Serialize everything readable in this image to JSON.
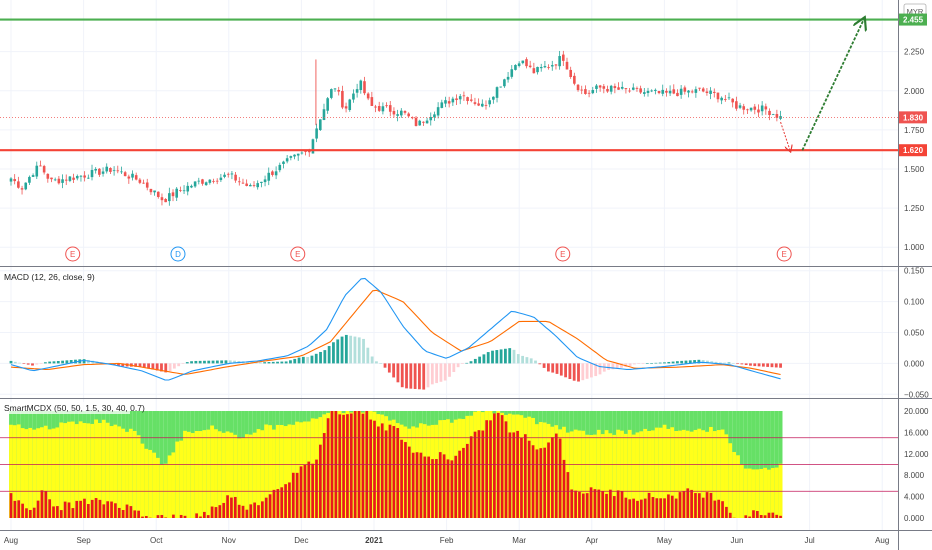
{
  "colors": {
    "up": "#26a69a",
    "down": "#ef5350",
    "macd_line": "#2196f3",
    "signal_line": "#ff6d00",
    "hist_pos_strong": "#26a69a",
    "hist_pos_weak": "#b2dfdb",
    "hist_neg_strong": "#ef5350",
    "hist_neg_weak": "#ffcdd2",
    "resistance": "#4caf50",
    "support": "#f44336",
    "mcdx_green": "#66e066",
    "mcdx_yellow": "#ffff1a",
    "mcdx_red": "#e8191a",
    "mcdx_level": "#c2185b",
    "arrow": "#2e7d32",
    "arrow_red": "#e53935"
  },
  "chart_data": [
    {
      "type": "candlestick",
      "title": "",
      "currency": "MYR",
      "y_ticks": [
        "2.250",
        "2.000",
        "1.750",
        "1.500",
        "1.250",
        "1.000"
      ],
      "ylim": [
        0.88,
        2.58
      ],
      "x_ticks": [
        "Aug",
        "Sep",
        "Oct",
        "Nov",
        "Dec",
        "2021",
        "Feb",
        "Mar",
        "Apr",
        "May",
        "Jun",
        "Jul",
        "Aug"
      ],
      "resistance": {
        "value": 2.455,
        "label": "2.455"
      },
      "support": {
        "value": 1.62,
        "label": "1.620"
      },
      "last_price": {
        "value": 1.83,
        "label": "1.830"
      },
      "projection": {
        "low": {
          "month": 10.9,
          "value": 1.62
        },
        "target": {
          "month": 11.75,
          "value": 2.46
        }
      },
      "events": [
        {
          "month": 0.85,
          "letter": "E",
          "kind": "earnings"
        },
        {
          "month": 2.3,
          "letter": "D",
          "kind": "dividend"
        },
        {
          "month": 3.95,
          "letter": "E",
          "kind": "earnings"
        },
        {
          "month": 7.6,
          "letter": "E",
          "kind": "earnings"
        },
        {
          "month": 10.65,
          "letter": "E",
          "kind": "earnings"
        }
      ],
      "close_waypoints": [
        [
          0.0,
          1.44
        ],
        [
          0.15,
          1.38
        ],
        [
          0.3,
          1.48
        ],
        [
          0.4,
          1.52
        ],
        [
          0.55,
          1.42
        ],
        [
          1.0,
          1.46
        ],
        [
          1.4,
          1.5
        ],
        [
          1.8,
          1.42
        ],
        [
          2.1,
          1.3
        ],
        [
          2.3,
          1.36
        ],
        [
          2.6,
          1.42
        ],
        [
          3.0,
          1.46
        ],
        [
          3.3,
          1.38
        ],
        [
          3.6,
          1.48
        ],
        [
          3.85,
          1.56
        ],
        [
          4.1,
          1.62
        ],
        [
          4.25,
          1.82
        ],
        [
          4.45,
          2.04
        ],
        [
          4.6,
          1.88
        ],
        [
          4.8,
          2.06
        ],
        [
          4.95,
          1.9
        ],
        [
          5.2,
          1.88
        ],
        [
          5.4,
          1.86
        ],
        [
          5.6,
          1.78
        ],
        [
          5.9,
          1.9
        ],
        [
          6.2,
          1.98
        ],
        [
          6.5,
          1.9
        ],
        [
          6.8,
          2.08
        ],
        [
          7.0,
          2.2
        ],
        [
          7.2,
          2.12
        ],
        [
          7.5,
          2.18
        ],
        [
          7.6,
          2.22
        ],
        [
          7.75,
          2.06
        ],
        [
          7.9,
          1.98
        ],
        [
          8.1,
          2.02
        ],
        [
          8.5,
          2.0
        ],
        [
          9.0,
          1.98
        ],
        [
          9.5,
          2.0
        ],
        [
          9.8,
          1.96
        ],
        [
          10.0,
          1.9
        ],
        [
          10.4,
          1.88
        ],
        [
          10.6,
          1.83
        ]
      ]
    },
    {
      "type": "line",
      "title": "MACD (12, 26, close, 9)",
      "y_ticks": [
        "0.150",
        "0.100",
        "0.050",
        "0.000",
        "−0.050"
      ],
      "ylim": [
        -0.056,
        0.156
      ],
      "series": [
        {
          "name": "",
          "role": "macd",
          "waypoints": [
            [
              0.0,
              -0.002
            ],
            [
              0.3,
              -0.012
            ],
            [
              0.6,
              -0.005
            ],
            [
              1.0,
              0.005
            ],
            [
              1.4,
              -0.002
            ],
            [
              1.8,
              -0.012
            ],
            [
              2.15,
              -0.028
            ],
            [
              2.5,
              -0.012
            ],
            [
              3.0,
              0.0
            ],
            [
              3.4,
              0.004
            ],
            [
              3.8,
              0.012
            ],
            [
              4.1,
              0.028
            ],
            [
              4.35,
              0.055
            ],
            [
              4.6,
              0.11
            ],
            [
              4.85,
              0.14
            ],
            [
              5.1,
              0.115
            ],
            [
              5.4,
              0.06
            ],
            [
              5.7,
              0.02
            ],
            [
              6.0,
              0.008
            ],
            [
              6.3,
              0.025
            ],
            [
              6.6,
              0.055
            ],
            [
              6.9,
              0.085
            ],
            [
              7.2,
              0.075
            ],
            [
              7.5,
              0.045
            ],
            [
              7.8,
              0.01
            ],
            [
              8.1,
              -0.005
            ],
            [
              8.5,
              -0.01
            ],
            [
              9.0,
              -0.005
            ],
            [
              9.5,
              0.002
            ],
            [
              9.9,
              -0.002
            ],
            [
              10.2,
              -0.012
            ],
            [
              10.6,
              -0.025
            ]
          ]
        },
        {
          "name": "",
          "role": "signal",
          "waypoints": [
            [
              0.0,
              -0.006
            ],
            [
              0.5,
              -0.01
            ],
            [
              1.0,
              -0.002
            ],
            [
              1.5,
              0.0
            ],
            [
              2.0,
              -0.01
            ],
            [
              2.4,
              -0.018
            ],
            [
              3.0,
              -0.005
            ],
            [
              3.5,
              0.004
            ],
            [
              4.0,
              0.012
            ],
            [
              4.4,
              0.035
            ],
            [
              4.8,
              0.092
            ],
            [
              5.0,
              0.12
            ],
            [
              5.4,
              0.1
            ],
            [
              5.8,
              0.05
            ],
            [
              6.2,
              0.02
            ],
            [
              6.6,
              0.035
            ],
            [
              7.0,
              0.068
            ],
            [
              7.4,
              0.068
            ],
            [
              7.8,
              0.04
            ],
            [
              8.2,
              0.005
            ],
            [
              8.6,
              -0.008
            ],
            [
              9.2,
              -0.006
            ],
            [
              9.8,
              -0.002
            ],
            [
              10.2,
              -0.008
            ],
            [
              10.6,
              -0.018
            ]
          ]
        }
      ]
    },
    {
      "type": "bar",
      "title": "SmartMCDX (50, 50, 1.5, 30, 40, 0.7)",
      "y_ticks": [
        "20.000",
        "16.000",
        "12.000",
        "8.000",
        "4.000",
        "0.000"
      ],
      "ylim": [
        0,
        20
      ],
      "levels": [
        15,
        10,
        5
      ],
      "banker_waypoints": [
        [
          0.0,
          4
        ],
        [
          0.3,
          2
        ],
        [
          0.45,
          5
        ],
        [
          0.6,
          2
        ],
        [
          1.0,
          3
        ],
        [
          1.4,
          3
        ],
        [
          1.8,
          1
        ],
        [
          2.1,
          0
        ],
        [
          2.4,
          0
        ],
        [
          2.7,
          1
        ],
        [
          3.0,
          4
        ],
        [
          3.3,
          2
        ],
        [
          3.6,
          5
        ],
        [
          3.9,
          8
        ],
        [
          4.2,
          11
        ],
        [
          4.4,
          20
        ],
        [
          4.6,
          20
        ],
        [
          4.9,
          20
        ],
        [
          5.1,
          17
        ],
        [
          5.3,
          17
        ],
        [
          5.5,
          13
        ],
        [
          5.7,
          11
        ],
        [
          5.9,
          12
        ],
        [
          6.1,
          11
        ],
        [
          6.3,
          14
        ],
        [
          6.5,
          17
        ],
        [
          6.7,
          20
        ],
        [
          6.9,
          16
        ],
        [
          7.1,
          15
        ],
        [
          7.3,
          13
        ],
        [
          7.55,
          16
        ],
        [
          7.7,
          6
        ],
        [
          7.9,
          5
        ],
        [
          8.2,
          5
        ],
        [
          8.6,
          4
        ],
        [
          9.0,
          4
        ],
        [
          9.4,
          5
        ],
        [
          9.7,
          4
        ],
        [
          9.85,
          3
        ],
        [
          9.95,
          0
        ],
        [
          10.3,
          1
        ],
        [
          10.6,
          1
        ]
      ],
      "retail_waypoints": [
        [
          0.0,
          3
        ],
        [
          0.5,
          3
        ],
        [
          1.0,
          2
        ],
        [
          1.3,
          2
        ],
        [
          1.7,
          4
        ],
        [
          1.95,
          8
        ],
        [
          2.1,
          10
        ],
        [
          2.4,
          4
        ],
        [
          2.8,
          3
        ],
        [
          3.2,
          5
        ],
        [
          3.5,
          3
        ],
        [
          3.8,
          3
        ],
        [
          4.2,
          1
        ],
        [
          4.4,
          0
        ],
        [
          5.0,
          0
        ],
        [
          5.5,
          3
        ],
        [
          6.0,
          2
        ],
        [
          6.5,
          0
        ],
        [
          7.0,
          1
        ],
        [
          7.5,
          3
        ],
        [
          7.8,
          4
        ],
        [
          8.2,
          4
        ],
        [
          8.6,
          4
        ],
        [
          9.0,
          3
        ],
        [
          9.4,
          4
        ],
        [
          9.8,
          3
        ],
        [
          10.1,
          11
        ],
        [
          10.4,
          11
        ],
        [
          10.6,
          10
        ]
      ]
    }
  ]
}
